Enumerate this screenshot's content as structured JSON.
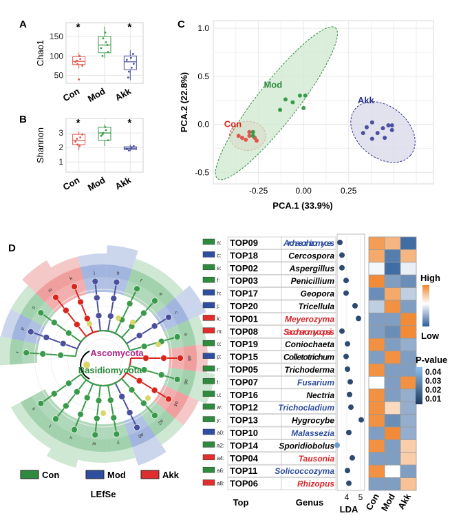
{
  "panels": {
    "A": {
      "label": "A"
    },
    "B": {
      "label": "B"
    },
    "C": {
      "label": "C"
    },
    "D": {
      "label": "D"
    }
  },
  "colors": {
    "con": "#e0574f",
    "mod": "#3a9a4b",
    "akk": "#4a4f9e",
    "con_dark": "#d9251c",
    "mod_dark": "#2d8a3c",
    "akk_dark": "#2e3192",
    "heat_high": "#f0852d",
    "heat_low": "#2b5d9a",
    "grid": "#e6e6e6"
  },
  "chart_data": [
    {
      "type": "box",
      "panel": "A",
      "ylabel": "Chao1",
      "categories": [
        "Con",
        "Mod",
        "Akk"
      ],
      "ylim": [
        30,
        185
      ],
      "yticks": [
        50,
        100,
        150
      ],
      "boxes": [
        {
          "name": "Con",
          "q1": 78,
          "median": 86,
          "q3": 98,
          "whisker_low": 68,
          "whisker_high": 108,
          "outliers": [
            40
          ],
          "points": [
            85,
            92,
            80,
            75,
            100,
            88
          ],
          "star": "*"
        },
        {
          "name": "Mod",
          "q1": 108,
          "median": 128,
          "q3": 150,
          "whisker_low": 95,
          "whisker_high": 175,
          "outliers": [],
          "points": [
            120,
            135,
            145,
            110,
            160,
            100,
            128
          ],
          "star": ""
        },
        {
          "name": "Akk",
          "q1": 65,
          "median": 85,
          "q3": 100,
          "whisker_low": 38,
          "whisker_high": 115,
          "outliers": [],
          "points": [
            90,
            70,
            60,
            80,
            95,
            45,
            105
          ],
          "star": "*"
        }
      ]
    },
    {
      "type": "box",
      "panel": "B",
      "ylabel": "Shannon",
      "categories": [
        "Con",
        "Mod",
        "Akk"
      ],
      "ylim": [
        0.3,
        4.0
      ],
      "yticks": [
        1,
        2,
        3
      ],
      "boxes": [
        {
          "name": "Con",
          "q1": 2.2,
          "median": 2.5,
          "q3": 2.9,
          "whisker_low": 1.8,
          "whisker_high": 3.1,
          "outliers": [],
          "points": [
            2.4,
            2.7,
            2.2,
            2.9,
            2.1,
            2.6
          ],
          "star": "*"
        },
        {
          "name": "Mod",
          "q1": 2.5,
          "median": 3.0,
          "q3": 3.4,
          "whisker_low": 2.1,
          "whisker_high": 3.6,
          "outliers": [],
          "points": [
            2.8,
            3.2,
            3.0,
            2.5,
            3.4,
            2.9
          ],
          "star": ""
        },
        {
          "name": "Akk",
          "q1": 1.85,
          "median": 1.95,
          "q3": 2.05,
          "whisker_low": 1.75,
          "whisker_high": 2.2,
          "outliers": [],
          "points": [
            1.9,
            2.0,
            1.8,
            2.1,
            1.95
          ],
          "star": "*"
        }
      ]
    },
    {
      "type": "scatter",
      "panel": "C",
      "xlabel": "PCA.1 (33.9%)",
      "ylabel": "PCA.2 (22.8%)",
      "xlim": [
        -0.5,
        0.72
      ],
      "ylim": [
        -0.62,
        1.08
      ],
      "xticks": [
        -0.25,
        0.0,
        0.25
      ],
      "yticks": [
        -0.5,
        0.0,
        0.5,
        1.0
      ],
      "series": [
        {
          "name": "Con",
          "points": [
            [
              -0.36,
              -0.12
            ],
            [
              -0.32,
              -0.16
            ],
            [
              -0.3,
              -0.12
            ],
            [
              -0.27,
              -0.14
            ],
            [
              -0.26,
              -0.17
            ],
            [
              -0.3,
              -0.08
            ],
            [
              -0.34,
              -0.14
            ]
          ],
          "ellipse": {
            "cx": -0.31,
            "cy": -0.12,
            "rx": 0.1,
            "ry": 0.08,
            "angle": 0
          }
        },
        {
          "name": "Mod",
          "points": [
            [
              -0.13,
              0.15
            ],
            [
              -0.1,
              0.26
            ],
            [
              -0.06,
              0.23
            ],
            [
              -0.02,
              0.3
            ],
            [
              0.0,
              0.17
            ],
            [
              0.01,
              0.3
            ],
            [
              -0.28,
              -0.08
            ],
            [
              -0.28,
              -0.12
            ]
          ],
          "ellipse": {
            "cx": -0.15,
            "cy": 0.22,
            "rx": 0.53,
            "ry": 0.11,
            "angle": 52
          }
        },
        {
          "name": "Akk",
          "points": [
            [
              0.35,
              -0.03
            ],
            [
              0.38,
              0.02
            ],
            [
              0.41,
              -0.09
            ],
            [
              0.44,
              -0.04
            ],
            [
              0.47,
              -0.01
            ],
            [
              0.49,
              -0.06
            ],
            [
              0.49,
              -0.01
            ],
            [
              0.45,
              -0.14
            ],
            [
              0.38,
              -0.15
            ],
            [
              0.33,
              -0.09
            ]
          ],
          "ellipse": {
            "cx": 0.44,
            "cy": -0.08,
            "rx": 0.2,
            "ry": 0.14,
            "angle": -40
          }
        }
      ],
      "annotations": [
        "Mod",
        "Akk",
        "Con"
      ]
    },
    {
      "type": "cladogram",
      "panel": "D",
      "labels": [
        "Ascomycota",
        "Basidiomycota"
      ],
      "segments": [
        {
          "id": "r",
          "group": "Con"
        },
        {
          "id": "p",
          "group": "Mod"
        },
        {
          "id": "o",
          "group": "Con"
        },
        {
          "id": "m",
          "group": "Akk"
        },
        {
          "id": "k",
          "group": "Akk"
        },
        {
          "id": "j",
          "group": "Mod"
        },
        {
          "id": "h",
          "group": "Mod"
        },
        {
          "id": "f",
          "group": "Con"
        },
        {
          "id": "e",
          "group": "Con"
        },
        {
          "id": "c",
          "group": "Mod"
        },
        {
          "id": "a",
          "group": "Con"
        },
        {
          "id": "a8",
          "group": "Akk"
        },
        {
          "id": "a6",
          "group": "Con"
        },
        {
          "id": "a4",
          "group": "Akk"
        },
        {
          "id": "a2",
          "group": "Con"
        },
        {
          "id": "a0",
          "group": "Mod"
        },
        {
          "id": "y",
          "group": "Con"
        },
        {
          "id": "w",
          "group": "Con"
        },
        {
          "id": "u",
          "group": "Con"
        },
        {
          "id": "t",
          "group": "Con"
        },
        {
          "id": "s",
          "group": "Con"
        }
      ],
      "legend": [
        {
          "name": "Con"
        },
        {
          "name": "Mod"
        },
        {
          "name": "Akk"
        }
      ],
      "caption": "LEfSe"
    },
    {
      "type": "table",
      "panel": "D",
      "columns": [
        "Top",
        "Genus",
        "LDA"
      ],
      "lda_ticks": [
        4,
        5
      ],
      "lda_range": [
        3.3,
        5.3
      ],
      "rows": [
        {
          "code": "a:",
          "group": "Con",
          "top": "TOP09",
          "genus": "Archaeorhizomyces",
          "genus_color": "mod",
          "lda": 3.5,
          "heat": [
            0.8,
            0.6,
            -0.9
          ]
        },
        {
          "code": "c:",
          "group": "Mod",
          "top": "TOP18",
          "genus": "Cercospora",
          "genus_color": "black",
          "lda": 3.65,
          "heat": [
            0.7,
            -0.8,
            0.6
          ]
        },
        {
          "code": "e:",
          "group": "Con",
          "top": "TOP02",
          "genus": "Aspergillus",
          "genus_color": "black",
          "lda": 3.65,
          "heat": [
            -0.05,
            -0.9,
            -0.1
          ]
        },
        {
          "code": "f:",
          "group": "Con",
          "top": "TOP03",
          "genus": "Penicillium",
          "genus_color": "black",
          "lda": 3.95,
          "heat": [
            0.95,
            -0.6,
            -0.7
          ]
        },
        {
          "code": "h:",
          "group": "Mod",
          "top": "TOP17",
          "genus": "Geopora",
          "genus_color": "black",
          "lda": 3.95,
          "heat": [
            -0.7,
            0.7,
            -0.3
          ]
        },
        {
          "code": "j:",
          "group": "Mod",
          "top": "TOP20",
          "genus": "Tricellula",
          "genus_color": "black",
          "lda": 4.6,
          "heat": [
            -0.3,
            0.9,
            -0.6
          ]
        },
        {
          "code": "k:",
          "group": "Akk",
          "top": "TOP01",
          "genus": "Meyerozyma",
          "genus_color": "akk",
          "lda": 4.85,
          "heat": [
            -0.6,
            -0.6,
            0.95
          ]
        },
        {
          "code": "m:",
          "group": "Akk",
          "top": "TOP08",
          "genus": "Saccharomycopsis",
          "genus_color": "akk",
          "lda": 3.65,
          "heat": [
            -0.6,
            -0.7,
            0.95
          ]
        },
        {
          "code": "o:",
          "group": "Con",
          "top": "TOP19",
          "genus": "Coniochaeta",
          "genus_color": "black",
          "lda": 4.05,
          "heat": [
            0.9,
            -0.6,
            -0.5
          ]
        },
        {
          "code": "p:",
          "group": "Mod",
          "top": "TOP15",
          "genus": "Colletotrichum",
          "genus_color": "black",
          "lda": 3.95,
          "heat": [
            -0.6,
            0.9,
            -0.6
          ]
        },
        {
          "code": "r:",
          "group": "Con",
          "top": "TOP05",
          "genus": "Trichoderma",
          "genus_color": "black",
          "lda": 4.05,
          "heat": [
            0.9,
            -0.6,
            -0.6
          ]
        },
        {
          "code": "t:",
          "group": "Con",
          "top": "TOP07",
          "genus": "Fusarium",
          "genus_color": "mod",
          "lda": 4.25,
          "heat": [
            0.0,
            -0.6,
            0.9
          ]
        },
        {
          "code": "u:",
          "group": "Con",
          "top": "TOP16",
          "genus": "Nectria",
          "genus_color": "black",
          "lda": 4.2,
          "heat": [
            0.9,
            -0.6,
            -0.5
          ]
        },
        {
          "code": "w:",
          "group": "Con",
          "top": "TOP12",
          "genus": "Trichocladium",
          "genus_color": "mod",
          "lda": 4.3,
          "heat": [
            0.9,
            0.3,
            -0.5
          ]
        },
        {
          "code": "y:",
          "group": "Con",
          "top": "TOP13",
          "genus": "Hygrocybe",
          "genus_color": "black",
          "lda": 5.05,
          "heat": [
            0.9,
            -0.7,
            -0.5
          ]
        },
        {
          "code": "a0:",
          "group": "Mod",
          "top": "TOP10",
          "genus": "Malassezia",
          "genus_color": "mod",
          "lda": 4.15,
          "heat": [
            -0.6,
            0.95,
            -0.5
          ]
        },
        {
          "code": "a2:",
          "group": "Con",
          "top": "TOP14",
          "genus": "Sporidiobolus",
          "genus_color": "black",
          "lda": 3.3,
          "heat": [
            0.9,
            -0.6,
            0.4
          ]
        },
        {
          "code": "a4:",
          "group": "Akk",
          "top": "TOP04",
          "genus": "Tausonia",
          "genus_color": "akk",
          "lda": 4.4,
          "heat": [
            -0.6,
            -0.6,
            0.4
          ]
        },
        {
          "code": "a6:",
          "group": "Con",
          "top": "TOP11",
          "genus": "Solicoccozyma",
          "genus_color": "mod",
          "lda": 4.05,
          "heat": [
            0.9,
            0.0,
            -0.6
          ]
        },
        {
          "code": "a8:",
          "group": "Akk",
          "top": "TOP06",
          "genus": "Rhizopus",
          "genus_color": "akk",
          "lda": 4.15,
          "heat": [
            -0.6,
            -0.6,
            0.5
          ]
        }
      ],
      "heat_columns": [
        "Con",
        "Mod",
        "Akk"
      ],
      "heat_legend": {
        "high": "High",
        "low": "Low"
      },
      "pvalue_legend": {
        "title": "P-value",
        "ticks": [
          "0.04",
          "0.03",
          "0.02",
          "0.01"
        ]
      }
    }
  ]
}
